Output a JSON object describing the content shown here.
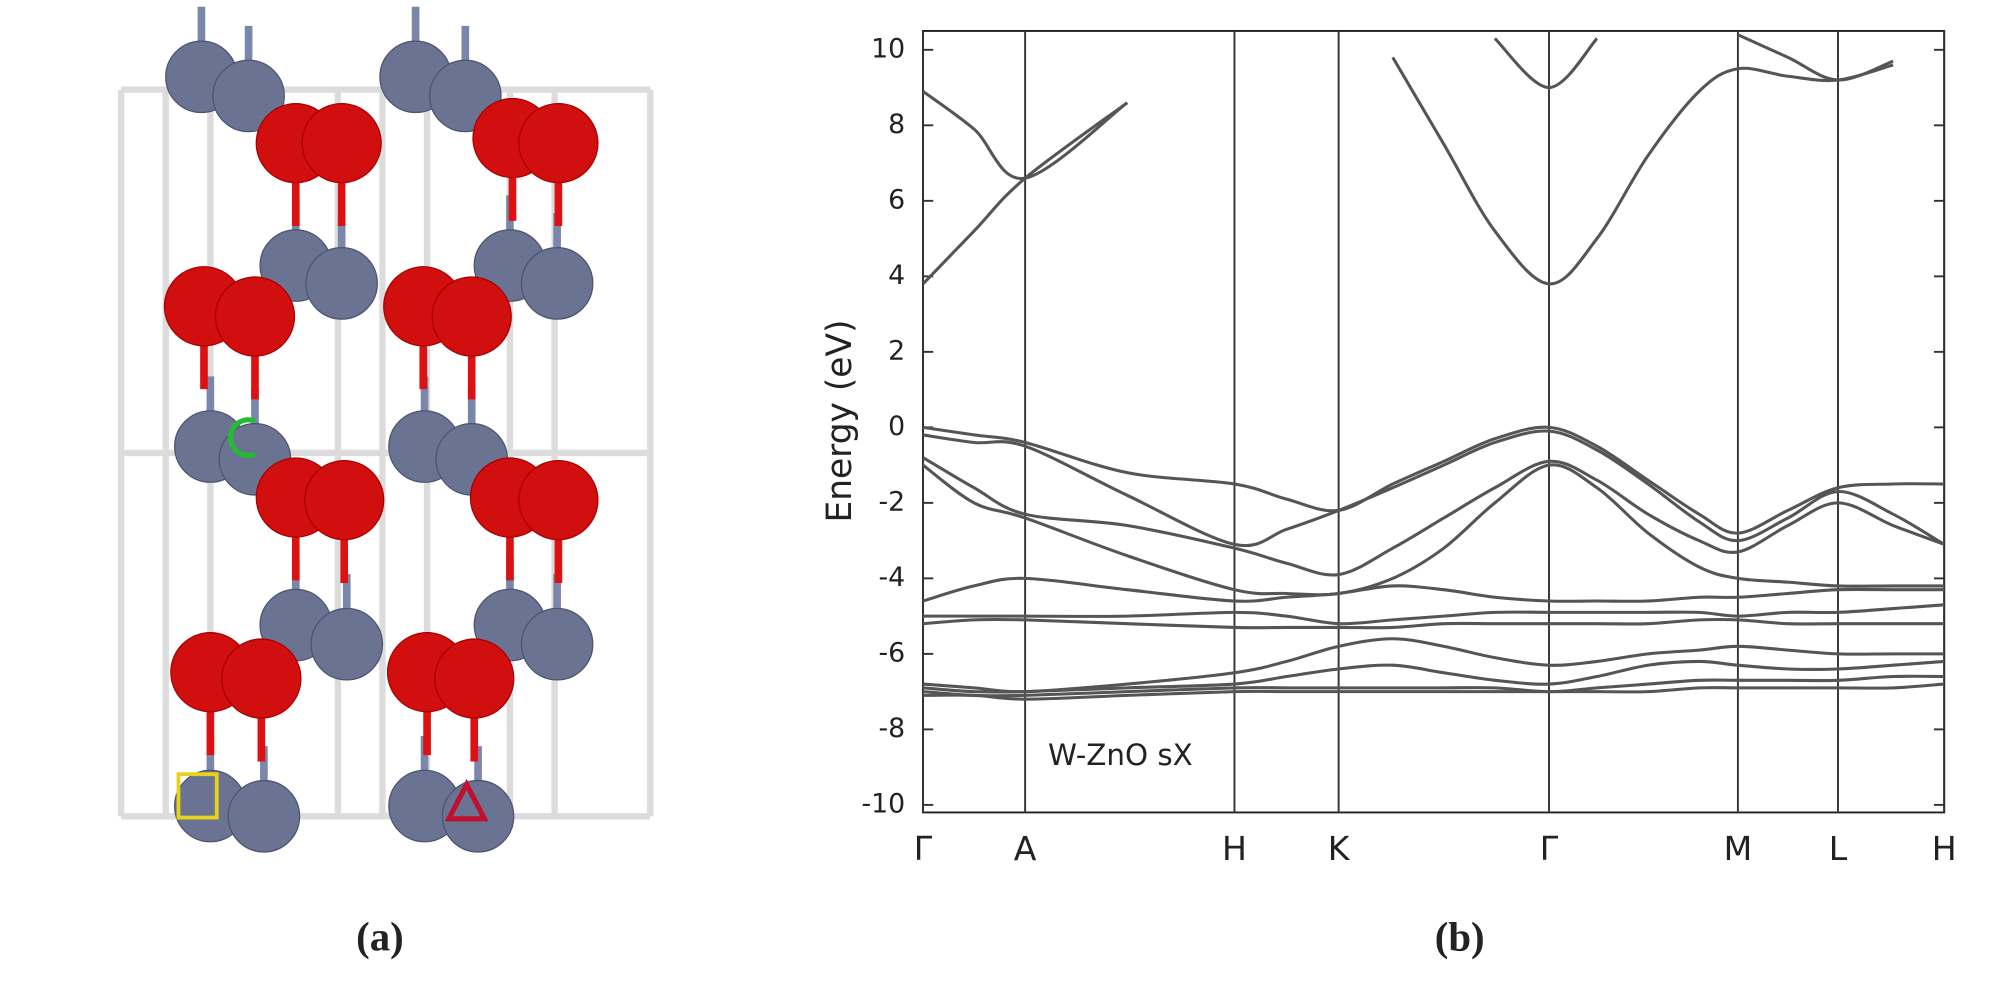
{
  "panel_labels": [
    "(a)",
    "(b)"
  ],
  "chart_data": {
    "type": "line",
    "ylabel": "Energy (eV)",
    "annotation": "W-ZnO sX",
    "color": "#555555",
    "xlim": [
      0,
      1
    ],
    "ylim": [
      -10.2,
      10.5
    ],
    "xticks": [
      {
        "value": 0,
        "label": "Γ"
      },
      {
        "value": 0.1,
        "label": "A"
      },
      {
        "value": 0.305,
        "label": "H"
      },
      {
        "value": 0.407,
        "label": "K"
      },
      {
        "value": 0.613,
        "label": "Γ"
      },
      {
        "value": 0.798,
        "label": "M"
      },
      {
        "value": 0.896,
        "label": "L"
      },
      {
        "value": 1,
        "label": "H"
      }
    ],
    "yticks": [
      -10,
      -8,
      -6,
      -4,
      -2,
      0,
      2,
      4,
      6,
      8,
      10
    ],
    "x": [
      0,
      0.05,
      0.1,
      0.2,
      0.305,
      0.356,
      0.407,
      0.46,
      0.51,
      0.56,
      0.613,
      0.66,
      0.71,
      0.76,
      0.798,
      0.847,
      0.896,
      0.95,
      1
    ],
    "series": [
      {
        "values": [
          3.8,
          5.2,
          6.6,
          8.6,
          null,
          null,
          null,
          9.8,
          7.5,
          5.2,
          3.8,
          5.0,
          7.2,
          8.9,
          9.5,
          9.3,
          9.2,
          9.6,
          null
        ]
      },
      {
        "values": [
          8.9,
          7.9,
          6.6,
          8.6,
          null,
          null,
          null,
          null,
          null,
          10.3,
          9.0,
          10.3,
          null,
          null,
          10.4,
          9.8,
          9.2,
          9.7,
          null
        ]
      },
      {
        "values": [
          0,
          -0.2,
          -0.4,
          -1.2,
          -1.5,
          -1.9,
          -2.2,
          -1.5,
          -0.9,
          -0.3,
          0,
          -0.5,
          -1.4,
          -2.3,
          -2.8,
          -2.2,
          -1.6,
          -1.5,
          -1.5
        ]
      },
      {
        "values": [
          -0.2,
          -0.4,
          -0.5,
          -1.8,
          -3.1,
          -2.7,
          -2.2,
          -1.6,
          -1.0,
          -0.4,
          -0.1,
          -0.6,
          -1.5,
          -2.5,
          -3.0,
          -2.4,
          -1.7,
          -2.3,
          -3.1
        ]
      },
      {
        "values": [
          -0.8,
          -1.6,
          -2.3,
          -2.6,
          -3.2,
          -3.6,
          -3.9,
          -3.2,
          -2.4,
          -1.6,
          -0.9,
          -1.4,
          -2.3,
          -3.0,
          -3.3,
          -2.6,
          -2.0,
          -2.6,
          -3.1
        ]
      },
      {
        "values": [
          -1.0,
          -2.0,
          -2.4,
          -3.4,
          -4.3,
          -4.4,
          -4.4,
          -4.0,
          -3.2,
          -2.0,
          -1.0,
          -1.6,
          -2.8,
          -3.7,
          -4.0,
          -4.1,
          -4.2,
          -4.2,
          -4.2
        ]
      },
      {
        "values": [
          -4.6,
          -4.2,
          -4.0,
          -4.3,
          -4.6,
          -4.5,
          -4.4,
          -4.2,
          -4.3,
          -4.5,
          -4.6,
          -4.6,
          -4.6,
          -4.5,
          -4.5,
          -4.4,
          -4.3,
          -4.3,
          -4.3
        ]
      },
      {
        "values": [
          -5.0,
          -5.0,
          -5.0,
          -5.0,
          -4.9,
          -5.0,
          -5.2,
          -5.1,
          -5.0,
          -4.9,
          -4.9,
          -4.9,
          -4.9,
          -4.9,
          -5.0,
          -4.9,
          -4.9,
          -4.8,
          -4.7
        ]
      },
      {
        "values": [
          -5.2,
          -5.1,
          -5.1,
          -5.2,
          -5.3,
          -5.3,
          -5.3,
          -5.3,
          -5.2,
          -5.2,
          -5.2,
          -5.2,
          -5.2,
          -5.1,
          -5.1,
          -5.2,
          -5.2,
          -5.2,
          -5.2
        ]
      },
      {
        "values": [
          -6.8,
          -6.9,
          -7.0,
          -6.8,
          -6.5,
          -6.2,
          -5.8,
          -5.6,
          -5.8,
          -6.1,
          -6.3,
          -6.2,
          -6.0,
          -5.9,
          -5.8,
          -5.9,
          -6.0,
          -6.0,
          -6.0
        ]
      },
      {
        "values": [
          -6.9,
          -7.0,
          -7.0,
          -6.9,
          -6.8,
          -6.6,
          -6.4,
          -6.3,
          -6.5,
          -6.7,
          -6.8,
          -6.6,
          -6.3,
          -6.2,
          -6.3,
          -6.4,
          -6.4,
          -6.3,
          -6.2
        ]
      },
      {
        "values": [
          -7.0,
          -7.1,
          -7.1,
          -7.0,
          -6.9,
          -6.9,
          -6.9,
          -6.9,
          -6.9,
          -6.9,
          -7.0,
          -6.9,
          -6.8,
          -6.7,
          -6.7,
          -6.7,
          -6.7,
          -6.6,
          -6.6
        ]
      },
      {
        "values": [
          -7.1,
          -7.1,
          -7.2,
          -7.1,
          -7.0,
          -7.0,
          -7.0,
          -7.0,
          -7.0,
          -7.0,
          -7.0,
          -7.0,
          -7.0,
          -6.9,
          -6.9,
          -6.9,
          -6.9,
          -6.9,
          -6.8
        ]
      }
    ]
  }
}
